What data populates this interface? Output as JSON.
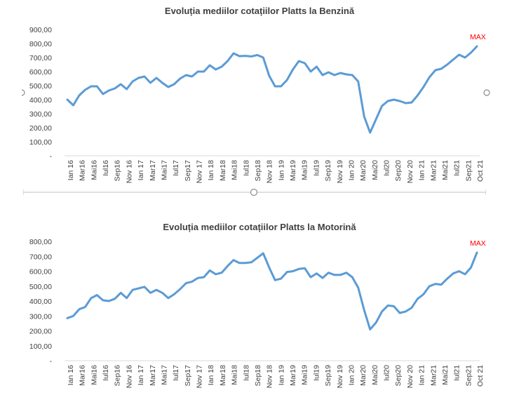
{
  "colors": {
    "line": "#5B9BD5",
    "max_label": "#FF0000",
    "axis_text": "#404040",
    "axis_line": "#D9D9D9"
  },
  "tick_labels": [
    "Ian 16",
    "Mar16",
    "Mai16",
    "Iul16",
    "Sep16",
    "Nov 16",
    "Ian 17",
    "Mar17",
    "Mai17",
    "Iul17",
    "Sep17",
    "Nov 17",
    "Ian 18",
    "Mar18",
    "Mai18",
    "Iul18",
    "Sep18",
    "Nov 18",
    "Ian 19",
    "Mar19",
    "Mai19",
    "Iul19",
    "Sep19",
    "Nov 19",
    "Ian 20",
    "Mar20",
    "Mai20",
    "Iul20",
    "Sep20",
    "Nov 20",
    "Ian 21",
    "Mar21",
    "Mai21",
    "Iul21",
    "Sep21",
    "Oct 21"
  ],
  "chart_data": [
    {
      "type": "line",
      "title": "Evoluția mediilor cotațiilor Platts la Benzină",
      "xlabel": "",
      "ylabel": "",
      "ylim": [
        0,
        900
      ],
      "y_ticks": [
        "-",
        "100,00",
        "200,00",
        "300,00",
        "400,00",
        "500,00",
        "600,00",
        "700,00",
        "800,00",
        "900,00"
      ],
      "annotation": "MAX",
      "series": [
        {
          "values": [
            400,
            360,
            430,
            470,
            495,
            495,
            440,
            465,
            480,
            510,
            475,
            530,
            555,
            565,
            520,
            555,
            520,
            490,
            510,
            550,
            575,
            565,
            600,
            600,
            645,
            615,
            635,
            675,
            730,
            710,
            712,
            708,
            718,
            700,
            570,
            495,
            495,
            540,
            615,
            675,
            660,
            600,
            635,
            575,
            595,
            575,
            590,
            580,
            575,
            530,
            280,
            165,
            260,
            355,
            390,
            400,
            390,
            375,
            380,
            430,
            490,
            560,
            610,
            620,
            650,
            685,
            720,
            700,
            735,
            780
          ]
        }
      ]
    },
    {
      "type": "line",
      "title": "Evoluția mediilor cotațiilor Platts la Motorină",
      "xlabel": "",
      "ylabel": "",
      "ylim": [
        0,
        800
      ],
      "y_ticks": [
        "-",
        "100,00",
        "200,00",
        "300,00",
        "400,00",
        "500,00",
        "600,00",
        "700,00",
        "800,00"
      ],
      "annotation": "MAX",
      "series": [
        {
          "values": [
            285,
            300,
            345,
            360,
            420,
            440,
            405,
            400,
            415,
            455,
            420,
            475,
            485,
            495,
            455,
            475,
            455,
            420,
            445,
            480,
            520,
            530,
            555,
            560,
            605,
            580,
            590,
            635,
            675,
            655,
            655,
            660,
            690,
            720,
            625,
            540,
            550,
            595,
            600,
            615,
            620,
            560,
            585,
            555,
            590,
            575,
            575,
            590,
            560,
            490,
            340,
            210,
            255,
            330,
            370,
            365,
            320,
            330,
            355,
            415,
            445,
            500,
            515,
            510,
            550,
            585,
            600,
            580,
            625,
            725
          ]
        }
      ]
    }
  ]
}
